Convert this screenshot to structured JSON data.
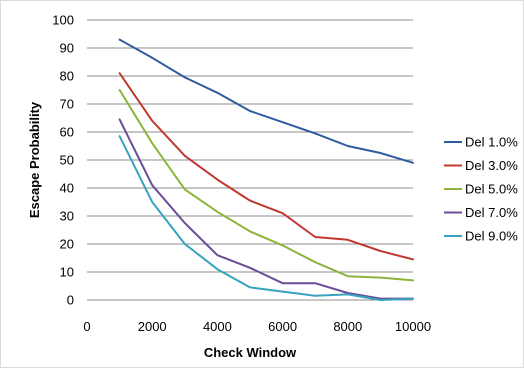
{
  "chart_data": {
    "type": "line",
    "xlabel": "Check Window",
    "ylabel": "Escape Probability",
    "xlim": [
      0,
      10000
    ],
    "ylim": [
      0,
      100
    ],
    "xticks": [
      0,
      2000,
      4000,
      6000,
      8000,
      10000
    ],
    "yticks": [
      0,
      10,
      20,
      30,
      40,
      50,
      60,
      70,
      80,
      90,
      100
    ],
    "grid": "horizontal",
    "legend_position": "right",
    "x": [
      1000,
      2000,
      3000,
      4000,
      5000,
      6000,
      7000,
      8000,
      9000,
      10000
    ],
    "series": [
      {
        "name": "Del 1.0%",
        "color": "#2e5c9e",
        "values": [
          93,
          86.5,
          79.5,
          74,
          67.5,
          63.5,
          59.5,
          55,
          52.5,
          49
        ]
      },
      {
        "name": "Del 3.0%",
        "color": "#c0392f",
        "values": [
          81,
          64,
          51.5,
          43,
          35.5,
          31,
          22.5,
          21.5,
          17.5,
          14.5
        ]
      },
      {
        "name": "Del 5.0%",
        "color": "#8cb43a",
        "values": [
          75,
          56,
          39.5,
          31.5,
          24.5,
          19.5,
          13.5,
          8.5,
          8,
          7
        ]
      },
      {
        "name": "Del 7.0%",
        "color": "#6a4c98",
        "values": [
          64.5,
          41,
          27.5,
          16,
          11.5,
          6,
          6,
          2.5,
          0.5,
          0.5
        ]
      },
      {
        "name": "Del 9.0%",
        "color": "#37a3bf",
        "values": [
          58.5,
          35,
          20,
          11,
          4.5,
          3,
          1.5,
          2,
          0,
          0.5
        ]
      }
    ]
  }
}
